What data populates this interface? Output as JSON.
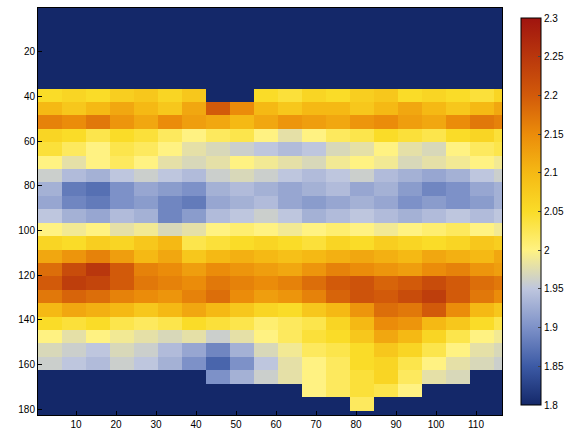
{
  "chart_data": {
    "type": "heatmap",
    "x": [
      3.5,
      9.5,
      15.5,
      21.5,
      27.5,
      33.5,
      39.5,
      45.5,
      51.5,
      57.5,
      63.5,
      69.5,
      75.5,
      81.5,
      87.5,
      93.5,
      99.5,
      105.5,
      111.5,
      117.5
    ],
    "y": [
      3.5,
      9.5,
      15.5,
      21.5,
      27.5,
      33.5,
      39.5,
      45.5,
      51.5,
      57.5,
      63.5,
      69.5,
      75.5,
      81.5,
      87.5,
      93.5,
      99.5,
      105.5,
      111.5,
      117.5,
      123.5,
      129.5,
      135.5,
      141.5,
      147.5,
      153.5,
      159.5,
      165.5,
      171.5,
      177.5,
      183.5
    ],
    "z": [
      [
        1.8,
        1.8,
        1.8,
        1.8,
        1.8,
        1.8,
        1.8,
        1.8,
        1.8,
        1.8,
        1.8,
        1.8,
        1.8,
        1.8,
        1.8,
        1.8,
        1.8,
        1.8,
        1.8,
        1.8
      ],
      [
        1.8,
        1.8,
        1.8,
        1.8,
        1.8,
        1.8,
        1.8,
        1.8,
        1.8,
        1.8,
        1.8,
        1.8,
        1.8,
        1.8,
        1.8,
        1.8,
        1.8,
        1.8,
        1.8,
        1.8
      ],
      [
        1.8,
        1.8,
        1.8,
        1.8,
        1.8,
        1.8,
        1.8,
        1.8,
        1.8,
        1.8,
        1.8,
        1.8,
        1.8,
        1.8,
        1.8,
        1.8,
        1.8,
        1.8,
        1.8,
        1.8
      ],
      [
        1.8,
        1.8,
        1.8,
        1.8,
        1.8,
        1.8,
        1.8,
        1.8,
        1.8,
        1.8,
        1.8,
        1.8,
        1.8,
        1.8,
        1.8,
        1.8,
        1.8,
        1.8,
        1.8,
        1.8
      ],
      [
        1.8,
        1.8,
        1.8,
        1.8,
        1.8,
        1.8,
        1.8,
        1.8,
        1.8,
        1.8,
        1.8,
        1.8,
        1.8,
        1.8,
        1.8,
        1.8,
        1.8,
        1.8,
        1.8,
        1.8
      ],
      [
        1.8,
        1.8,
        1.8,
        1.8,
        1.8,
        1.8,
        1.8,
        1.8,
        1.8,
        1.8,
        1.8,
        1.8,
        1.8,
        1.8,
        1.8,
        1.8,
        1.8,
        1.8,
        1.8,
        1.8
      ],
      [
        2.05,
        2.06,
        2.05,
        2.07,
        2.08,
        2.06,
        2.08,
        1.8,
        1.8,
        2.05,
        2.04,
        2.06,
        2.05,
        2.07,
        2.08,
        2.05,
        2.06,
        2.05,
        2.04,
        2.06
      ],
      [
        2.1,
        2.08,
        2.1,
        2.12,
        2.1,
        2.08,
        2.12,
        2.2,
        2.15,
        2.1,
        2.08,
        2.1,
        2.1,
        2.08,
        2.1,
        2.12,
        2.1,
        2.08,
        2.1,
        2.12
      ],
      [
        2.16,
        2.15,
        2.17,
        2.14,
        2.12,
        2.15,
        2.13,
        2.12,
        2.1,
        2.12,
        2.14,
        2.13,
        2.12,
        2.14,
        2.15,
        2.13,
        2.12,
        2.15,
        2.17,
        2.16
      ],
      [
        2.06,
        2.05,
        2.03,
        2.05,
        2.04,
        2.02,
        2.0,
        2.02,
        2.03,
        2.0,
        1.98,
        2.0,
        2.02,
        2.03,
        2.05,
        2.04,
        2.03,
        2.05,
        2.06,
        2.04
      ],
      [
        2.04,
        2.02,
        2.0,
        2.03,
        2.02,
        2.0,
        1.98,
        1.97,
        1.96,
        1.95,
        1.94,
        1.95,
        1.97,
        1.98,
        2.0,
        1.98,
        1.97,
        2.0,
        2.02,
        2.03
      ],
      [
        2.0,
        1.98,
        2.0,
        2.02,
        2.0,
        1.98,
        1.97,
        1.98,
        2.0,
        1.99,
        1.98,
        1.97,
        1.99,
        2.0,
        1.99,
        1.97,
        1.98,
        1.99,
        2.0,
        1.99
      ],
      [
        1.96,
        1.94,
        1.93,
        1.95,
        1.96,
        1.95,
        1.94,
        1.96,
        1.97,
        1.96,
        1.95,
        1.94,
        1.95,
        1.96,
        1.94,
        1.93,
        1.92,
        1.93,
        1.95,
        1.96
      ],
      [
        1.93,
        1.88,
        1.87,
        1.9,
        1.92,
        1.91,
        1.9,
        1.93,
        1.94,
        1.93,
        1.92,
        1.93,
        1.94,
        1.92,
        1.93,
        1.91,
        1.89,
        1.9,
        1.92,
        1.93
      ],
      [
        1.92,
        1.89,
        1.88,
        1.9,
        1.91,
        1.89,
        1.88,
        1.92,
        1.93,
        1.94,
        1.92,
        1.91,
        1.92,
        1.93,
        1.92,
        1.9,
        1.91,
        1.9,
        1.91,
        1.93
      ],
      [
        1.95,
        1.93,
        1.92,
        1.94,
        1.93,
        1.89,
        1.91,
        1.94,
        1.95,
        1.96,
        1.95,
        1.93,
        1.94,
        1.95,
        1.94,
        1.93,
        1.94,
        1.95,
        1.94,
        1.95
      ],
      [
        2.0,
        1.99,
        2.0,
        1.98,
        1.99,
        1.97,
        1.98,
        2.0,
        2.01,
        2.0,
        1.99,
        2.0,
        2.01,
        2.0,
        1.99,
        2.0,
        2.01,
        2.02,
        2.0,
        1.99
      ],
      [
        2.06,
        2.05,
        2.07,
        2.06,
        2.08,
        2.1,
        2.03,
        2.04,
        2.05,
        2.06,
        2.05,
        2.04,
        2.06,
        2.05,
        2.07,
        2.06,
        2.05,
        2.06,
        2.08,
        2.07
      ],
      [
        2.12,
        2.14,
        2.16,
        2.13,
        2.1,
        2.12,
        2.08,
        2.1,
        2.11,
        2.1,
        2.09,
        2.1,
        2.11,
        2.12,
        2.11,
        2.1,
        2.12,
        2.11,
        2.1,
        2.12
      ],
      [
        2.18,
        2.22,
        2.25,
        2.2,
        2.16,
        2.15,
        2.13,
        2.15,
        2.14,
        2.13,
        2.12,
        2.14,
        2.16,
        2.15,
        2.14,
        2.13,
        2.15,
        2.16,
        2.14,
        2.13
      ],
      [
        2.2,
        2.24,
        2.23,
        2.2,
        2.17,
        2.16,
        2.15,
        2.17,
        2.16,
        2.15,
        2.16,
        2.18,
        2.2,
        2.21,
        2.19,
        2.2,
        2.22,
        2.2,
        2.18,
        2.17
      ],
      [
        2.17,
        2.19,
        2.18,
        2.16,
        2.15,
        2.14,
        2.16,
        2.18,
        2.15,
        2.13,
        2.14,
        2.16,
        2.19,
        2.21,
        2.2,
        2.22,
        2.24,
        2.2,
        2.17,
        2.15
      ],
      [
        2.1,
        2.12,
        2.11,
        2.1,
        2.08,
        2.1,
        2.12,
        2.1,
        2.08,
        2.06,
        2.05,
        2.08,
        2.1,
        2.14,
        2.18,
        2.17,
        2.2,
        2.15,
        2.1,
        2.08
      ],
      [
        2.05,
        2.04,
        2.05,
        2.03,
        2.02,
        2.03,
        2.05,
        2.04,
        2.03,
        2.01,
        2.02,
        2.03,
        2.06,
        2.1,
        2.15,
        2.14,
        2.1,
        2.08,
        2.05,
        2.03
      ],
      [
        2.0,
        1.98,
        2.0,
        1.99,
        1.98,
        1.97,
        1.98,
        1.96,
        1.98,
        2.0,
        2.02,
        2.04,
        2.05,
        2.08,
        2.12,
        2.1,
        2.06,
        2.03,
        2.0,
        1.99
      ],
      [
        1.97,
        1.96,
        1.95,
        1.97,
        1.96,
        1.94,
        1.92,
        1.89,
        1.93,
        1.97,
        1.99,
        2.02,
        2.03,
        2.05,
        2.08,
        2.06,
        2.03,
        2.0,
        1.98,
        1.97
      ],
      [
        1.96,
        1.95,
        1.94,
        1.96,
        1.95,
        1.93,
        1.9,
        1.86,
        1.9,
        1.95,
        1.98,
        2.0,
        2.02,
        2.05,
        2.06,
        2.03,
        2.0,
        1.98,
        1.97,
        1.96
      ],
      [
        1.8,
        1.8,
        1.8,
        1.8,
        1.8,
        1.8,
        1.8,
        1.9,
        1.93,
        1.96,
        1.98,
        2.0,
        2.02,
        2.04,
        2.06,
        2.02,
        1.98,
        1.97,
        1.8,
        1.8
      ],
      [
        1.8,
        1.8,
        1.8,
        1.8,
        1.8,
        1.8,
        1.8,
        1.8,
        1.8,
        1.8,
        1.8,
        2.0,
        2.02,
        2.04,
        2.03,
        2.0,
        1.8,
        1.8,
        1.8,
        1.8
      ],
      [
        1.8,
        1.8,
        1.8,
        1.8,
        1.8,
        1.8,
        1.8,
        1.8,
        1.8,
        1.8,
        1.8,
        1.8,
        1.8,
        2.02,
        1.8,
        1.8,
        1.8,
        1.8,
        1.8,
        1.8
      ],
      [
        1.8,
        1.8,
        1.8,
        1.8,
        1.8,
        1.8,
        1.8,
        1.8,
        1.8,
        1.8,
        1.8,
        1.8,
        1.8,
        1.8,
        1.8,
        1.8,
        1.8,
        1.8,
        1.8,
        1.8
      ]
    ],
    "xlim": [
      0.5,
      116.5
    ],
    "ylim": [
      182.5,
      0.5
    ],
    "xticks": [
      10,
      20,
      30,
      40,
      50,
      60,
      70,
      80,
      90,
      100,
      110
    ],
    "yticks": [
      20,
      40,
      60,
      80,
      100,
      120,
      140,
      160,
      180
    ],
    "colorbar_range": [
      1.8,
      2.3
    ],
    "colorbar_ticks": [
      1.8,
      1.85,
      1.9,
      1.95,
      2,
      2.05,
      2.1,
      2.15,
      2.2,
      2.25,
      2.3
    ]
  }
}
